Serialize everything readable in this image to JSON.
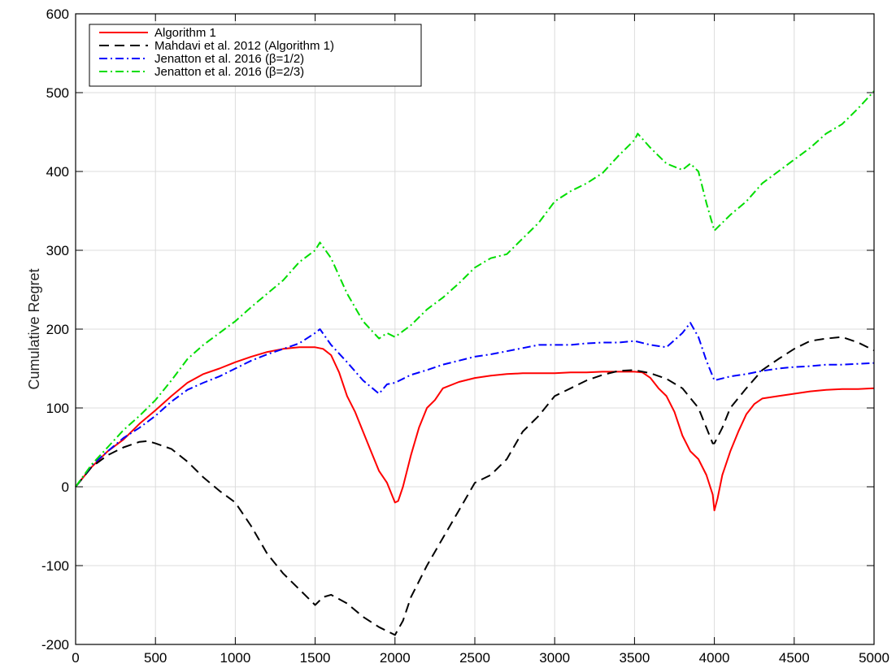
{
  "chart_data": {
    "type": "line",
    "title": "",
    "xlabel": "",
    "ylabel": "Cumulative Regret",
    "xlim": [
      0,
      5000
    ],
    "ylim": [
      -200,
      600
    ],
    "xticks": [
      0,
      500,
      1000,
      1500,
      2000,
      2500,
      3000,
      3500,
      4000,
      4500,
      5000
    ],
    "yticks": [
      -200,
      -100,
      0,
      100,
      200,
      300,
      400,
      500,
      600
    ],
    "grid": true,
    "legend_position": "top-left",
    "series": [
      {
        "name": "Algorithm 1",
        "color": "#ff0000",
        "dash": "solid",
        "x": [
          0,
          100,
          200,
          300,
          400,
          500,
          600,
          700,
          800,
          900,
          1000,
          1100,
          1200,
          1300,
          1400,
          1500,
          1550,
          1600,
          1650,
          1700,
          1750,
          1800,
          1850,
          1900,
          1950,
          2000,
          2020,
          2050,
          2100,
          2150,
          2200,
          2250,
          2300,
          2400,
          2500,
          2600,
          2700,
          2800,
          2900,
          3000,
          3100,
          3200,
          3300,
          3400,
          3500,
          3550,
          3600,
          3650,
          3700,
          3750,
          3800,
          3850,
          3900,
          3950,
          3990,
          4000,
          4020,
          4050,
          4100,
          4150,
          4200,
          4250,
          4300,
          4400,
          4500,
          4600,
          4700,
          4800,
          4900,
          5000
        ],
        "y": [
          0,
          25,
          45,
          60,
          80,
          97,
          115,
          132,
          143,
          150,
          158,
          165,
          171,
          175,
          177,
          177,
          175,
          167,
          145,
          115,
          95,
          70,
          45,
          20,
          5,
          -20,
          -18,
          0,
          40,
          75,
          100,
          110,
          125,
          133,
          138,
          141,
          143,
          144,
          144,
          144,
          145,
          145,
          146,
          146,
          146,
          145,
          138,
          125,
          115,
          95,
          65,
          45,
          35,
          15,
          -10,
          -30,
          -15,
          15,
          45,
          70,
          92,
          105,
          112,
          115,
          118,
          121,
          123,
          124,
          124,
          125
        ]
      },
      {
        "name": "Mahdavi et al. 2012 (Algorithm 1)",
        "color": "#000000",
        "dash": "dashed",
        "x": [
          0,
          100,
          200,
          300,
          400,
          450,
          500,
          600,
          700,
          800,
          900,
          1000,
          1100,
          1200,
          1300,
          1400,
          1500,
          1550,
          1600,
          1700,
          1800,
          1900,
          2000,
          2050,
          2100,
          2200,
          2300,
          2400,
          2500,
          2600,
          2700,
          2800,
          2900,
          3000,
          3100,
          3200,
          3300,
          3400,
          3500,
          3600,
          3700,
          3800,
          3900,
          3950,
          3990,
          4000,
          4050,
          4100,
          4200,
          4300,
          4400,
          4500,
          4600,
          4700,
          4800,
          4900,
          5000
        ],
        "y": [
          0,
          25,
          40,
          50,
          57,
          58,
          55,
          48,
          32,
          12,
          -5,
          -20,
          -50,
          -85,
          -110,
          -130,
          -150,
          -140,
          -137,
          -148,
          -165,
          -178,
          -188,
          -170,
          -140,
          -100,
          -65,
          -30,
          5,
          15,
          35,
          70,
          90,
          115,
          125,
          135,
          142,
          147,
          148,
          144,
          137,
          125,
          100,
          75,
          55,
          55,
          75,
          100,
          125,
          148,
          162,
          175,
          185,
          188,
          190,
          183,
          173
        ]
      },
      {
        "name": "Jenatton et al. 2016 (β=1/2)",
        "color": "#0000ff",
        "dash": "dashdot",
        "x": [
          0,
          100,
          200,
          300,
          400,
          500,
          600,
          700,
          800,
          900,
          1000,
          1100,
          1200,
          1300,
          1400,
          1500,
          1530,
          1600,
          1700,
          1800,
          1900,
          1950,
          2000,
          2100,
          2200,
          2300,
          2400,
          2500,
          2600,
          2700,
          2800,
          2900,
          3000,
          3100,
          3200,
          3300,
          3400,
          3500,
          3600,
          3700,
          3800,
          3850,
          3900,
          3950,
          4000,
          4100,
          4200,
          4300,
          4400,
          4500,
          4600,
          4700,
          4800,
          4900,
          5000
        ],
        "y": [
          0,
          27,
          45,
          62,
          75,
          90,
          108,
          123,
          132,
          140,
          150,
          160,
          168,
          175,
          182,
          195,
          200,
          180,
          158,
          135,
          118,
          130,
          132,
          142,
          148,
          155,
          160,
          165,
          168,
          172,
          176,
          180,
          180,
          180,
          182,
          183,
          183,
          185,
          180,
          177,
          195,
          208,
          190,
          160,
          135,
          140,
          143,
          147,
          150,
          152,
          153,
          155,
          155,
          156,
          157
        ]
      },
      {
        "name": "Jenatton et al. 2016 (β=2/3)",
        "color": "#00dd00",
        "dash": "dashdot",
        "x": [
          0,
          100,
          200,
          300,
          400,
          500,
          600,
          700,
          800,
          900,
          1000,
          1100,
          1200,
          1300,
          1400,
          1500,
          1530,
          1600,
          1700,
          1800,
          1900,
          1950,
          2000,
          2100,
          2200,
          2300,
          2400,
          2500,
          2600,
          2700,
          2800,
          2900,
          3000,
          3100,
          3200,
          3300,
          3400,
          3500,
          3520,
          3600,
          3700,
          3800,
          3850,
          3900,
          3950,
          4000,
          4100,
          4200,
          4300,
          4400,
          4500,
          4600,
          4700,
          4800,
          4900,
          5000
        ],
        "y": [
          0,
          28,
          50,
          72,
          90,
          110,
          135,
          162,
          180,
          195,
          210,
          228,
          245,
          262,
          285,
          300,
          310,
          290,
          245,
          210,
          188,
          195,
          190,
          205,
          225,
          240,
          258,
          278,
          290,
          295,
          315,
          335,
          362,
          375,
          385,
          398,
          420,
          440,
          448,
          430,
          410,
          402,
          410,
          400,
          360,
          325,
          345,
          362,
          385,
          400,
          415,
          430,
          448,
          460,
          480,
          502
        ]
      }
    ]
  }
}
